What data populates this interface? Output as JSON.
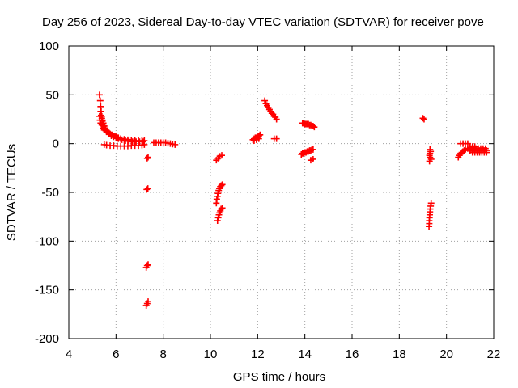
{
  "chart_data": {
    "type": "scatter",
    "title": "Day 256 of 2023, Sidereal Day-to-day VTEC variation (SDTVAR) for receiver pove",
    "xlabel": "GPS time / hours",
    "ylabel": "SDTVAR / TECUs",
    "xlim": [
      4,
      22
    ],
    "ylim": [
      -200,
      100
    ],
    "xticks": [
      4,
      6,
      8,
      10,
      12,
      14,
      16,
      18,
      20,
      22
    ],
    "yticks": [
      -200,
      -150,
      -100,
      -50,
      0,
      50,
      100
    ],
    "grid": true,
    "marker": "+",
    "color": "#ff0000",
    "series": [
      {
        "name": "SDTVAR",
        "points": [
          [
            5.3,
            50
          ],
          [
            5.33,
            44
          ],
          [
            5.35,
            38
          ],
          [
            5.37,
            33
          ],
          [
            5.4,
            28
          ],
          [
            5.43,
            24
          ],
          [
            5.46,
            21
          ],
          [
            5.5,
            18
          ],
          [
            5.55,
            15
          ],
          [
            5.6,
            13
          ],
          [
            5.7,
            11
          ],
          [
            5.8,
            9
          ],
          [
            5.9,
            8
          ],
          [
            6.0,
            7
          ],
          [
            6.1,
            6
          ],
          [
            6.2,
            5
          ],
          [
            6.35,
            4.5
          ],
          [
            6.5,
            4
          ],
          [
            6.65,
            3.5
          ],
          [
            6.8,
            3
          ],
          [
            6.95,
            3
          ],
          [
            7.1,
            3
          ],
          [
            7.2,
            3
          ],
          [
            5.3,
            28
          ],
          [
            5.32,
            24
          ],
          [
            5.35,
            21
          ],
          [
            5.4,
            19
          ],
          [
            5.45,
            16
          ],
          [
            5.5,
            14
          ],
          [
            5.6,
            12
          ],
          [
            5.7,
            10
          ],
          [
            5.8,
            8
          ],
          [
            5.9,
            7
          ],
          [
            6.0,
            6
          ],
          [
            6.1,
            5
          ],
          [
            6.25,
            4
          ],
          [
            6.4,
            3
          ],
          [
            6.55,
            2.5
          ],
          [
            6.7,
            2
          ],
          [
            6.85,
            2
          ],
          [
            7.0,
            2
          ],
          [
            7.15,
            2
          ],
          [
            5.35,
            33
          ],
          [
            5.37,
            29
          ],
          [
            5.4,
            26
          ],
          [
            5.42,
            23
          ],
          [
            5.45,
            20
          ],
          [
            5.48,
            18
          ],
          [
            5.52,
            16
          ],
          [
            5.56,
            14
          ],
          [
            5.6,
            13
          ],
          [
            5.65,
            12
          ],
          [
            5.75,
            10
          ],
          [
            5.85,
            9
          ],
          [
            5.95,
            8
          ],
          [
            6.05,
            6
          ],
          [
            6.2,
            5
          ],
          [
            6.35,
            4
          ],
          [
            5.5,
            -1
          ],
          [
            5.6,
            -1.5
          ],
          [
            5.75,
            -2
          ],
          [
            5.9,
            -2
          ],
          [
            6.05,
            -2.5
          ],
          [
            6.2,
            -2.5
          ],
          [
            6.35,
            -2.5
          ],
          [
            6.5,
            -2.5
          ],
          [
            6.65,
            -2
          ],
          [
            6.8,
            -2
          ],
          [
            6.95,
            -2
          ],
          [
            7.1,
            -1.5
          ],
          [
            7.2,
            -1
          ],
          [
            7.32,
            -15
          ],
          [
            7.36,
            -14
          ],
          [
            7.3,
            -47
          ],
          [
            7.35,
            -46
          ],
          [
            7.28,
            -127
          ],
          [
            7.32,
            -125
          ],
          [
            7.36,
            -124
          ],
          [
            7.28,
            -166
          ],
          [
            7.32,
            -164
          ],
          [
            7.36,
            -162
          ],
          [
            7.6,
            1
          ],
          [
            7.7,
            1
          ],
          [
            7.8,
            1
          ],
          [
            7.9,
            1
          ],
          [
            8.0,
            1
          ],
          [
            8.1,
            1
          ],
          [
            8.2,
            0.5
          ],
          [
            8.3,
            0
          ],
          [
            8.4,
            -0.5
          ],
          [
            8.5,
            -1
          ],
          [
            10.25,
            -17
          ],
          [
            10.32,
            -15
          ],
          [
            10.4,
            -13
          ],
          [
            10.48,
            -12
          ],
          [
            10.25,
            -61
          ],
          [
            10.27,
            -57
          ],
          [
            10.3,
            -54
          ],
          [
            10.32,
            -51
          ],
          [
            10.35,
            -48
          ],
          [
            10.38,
            -46
          ],
          [
            10.42,
            -44
          ],
          [
            10.46,
            -43
          ],
          [
            10.5,
            -42
          ],
          [
            10.3,
            -79
          ],
          [
            10.33,
            -76
          ],
          [
            10.36,
            -73
          ],
          [
            10.39,
            -71
          ],
          [
            10.42,
            -69
          ],
          [
            10.45,
            -67
          ],
          [
            10.5,
            -66
          ],
          [
            11.8,
            4
          ],
          [
            11.85,
            5
          ],
          [
            11.9,
            6
          ],
          [
            11.95,
            6
          ],
          [
            12.0,
            7
          ],
          [
            12.05,
            8
          ],
          [
            12.1,
            9
          ],
          [
            11.85,
            3
          ],
          [
            11.95,
            4
          ],
          [
            12.05,
            5
          ],
          [
            12.3,
            44
          ],
          [
            12.35,
            41
          ],
          [
            12.4,
            39
          ],
          [
            12.45,
            37
          ],
          [
            12.5,
            35
          ],
          [
            12.55,
            33
          ],
          [
            12.6,
            31
          ],
          [
            12.65,
            30
          ],
          [
            12.7,
            28
          ],
          [
            12.75,
            27
          ],
          [
            12.8,
            25
          ],
          [
            12.7,
            5
          ],
          [
            12.8,
            5
          ],
          [
            13.9,
            21
          ],
          [
            13.95,
            21
          ],
          [
            14.0,
            20
          ],
          [
            14.05,
            20
          ],
          [
            14.1,
            20
          ],
          [
            14.15,
            20
          ],
          [
            14.2,
            19
          ],
          [
            14.25,
            19
          ],
          [
            14.3,
            18
          ],
          [
            14.35,
            18
          ],
          [
            14.4,
            17
          ],
          [
            13.85,
            -11
          ],
          [
            13.9,
            -10
          ],
          [
            13.95,
            -10
          ],
          [
            14.0,
            -9
          ],
          [
            14.05,
            -9
          ],
          [
            14.1,
            -8
          ],
          [
            14.15,
            -8
          ],
          [
            14.2,
            -7
          ],
          [
            14.25,
            -7
          ],
          [
            14.3,
            -6
          ],
          [
            14.35,
            -6
          ],
          [
            14.25,
            -17
          ],
          [
            14.35,
            -16
          ],
          [
            19.0,
            26
          ],
          [
            19.05,
            25
          ],
          [
            19.3,
            -6
          ],
          [
            19.33,
            -8
          ],
          [
            19.3,
            -10
          ],
          [
            19.28,
            -12
          ],
          [
            19.3,
            -14
          ],
          [
            19.35,
            -16
          ],
          [
            19.28,
            -18
          ],
          [
            19.35,
            -61
          ],
          [
            19.33,
            -64
          ],
          [
            19.31,
            -67
          ],
          [
            19.3,
            -70
          ],
          [
            19.29,
            -73
          ],
          [
            19.28,
            -76
          ],
          [
            19.27,
            -79
          ],
          [
            19.27,
            -82
          ],
          [
            19.26,
            -85
          ],
          [
            20.5,
            -14
          ],
          [
            20.55,
            -12
          ],
          [
            20.6,
            -10
          ],
          [
            20.65,
            -9
          ],
          [
            20.7,
            -8
          ],
          [
            20.75,
            -7
          ],
          [
            20.8,
            -6
          ],
          [
            20.9,
            -5
          ],
          [
            21.0,
            -4
          ],
          [
            21.1,
            -3
          ],
          [
            21.2,
            -3
          ],
          [
            20.6,
            0
          ],
          [
            20.7,
            0
          ],
          [
            20.8,
            0
          ],
          [
            20.9,
            0
          ],
          [
            21.0,
            -7
          ],
          [
            21.1,
            -7
          ],
          [
            21.2,
            -7
          ],
          [
            21.3,
            -7
          ],
          [
            21.4,
            -7
          ],
          [
            21.5,
            -7
          ],
          [
            21.6,
            -7
          ],
          [
            21.7,
            -7
          ],
          [
            21.05,
            -5
          ],
          [
            21.15,
            -5
          ],
          [
            21.25,
            -5
          ],
          [
            21.35,
            -5
          ],
          [
            21.45,
            -5
          ],
          [
            21.55,
            -5
          ],
          [
            21.65,
            -5
          ],
          [
            21.1,
            -9
          ],
          [
            21.2,
            -9
          ],
          [
            21.3,
            -9
          ],
          [
            21.4,
            -9
          ],
          [
            21.5,
            -9
          ],
          [
            21.6,
            -9
          ],
          [
            21.7,
            -9
          ]
        ]
      }
    ]
  }
}
